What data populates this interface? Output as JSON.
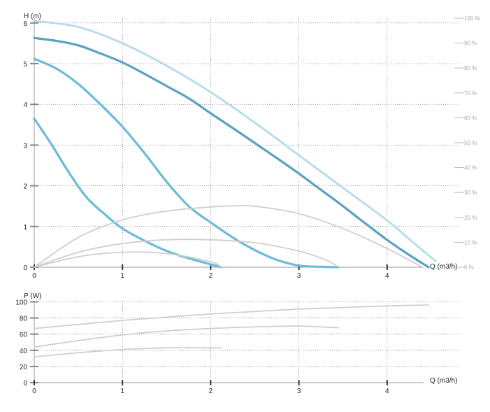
{
  "chart_data": [
    {
      "type": "line",
      "title": "",
      "xlabel": "Q (m3/h)",
      "ylabel": "H (m)",
      "xlim": [
        0,
        4.5
      ],
      "ylim": [
        0,
        6
      ],
      "x_ticks": [
        0,
        1,
        2,
        3,
        4
      ],
      "y_ticks": [
        0,
        1,
        2,
        3,
        4,
        5,
        6
      ],
      "grid": true,
      "y2_ticks": [
        "0 %",
        "10 %",
        "20 %",
        "30 %",
        "40 %",
        "50 %",
        "60 %",
        "70 %",
        "80 %",
        "90 %",
        "100 %"
      ],
      "y2lim": [
        0,
        100
      ],
      "colors": {
        "pump_curve_dark": "#5aa2c0",
        "pump_curve": "#6cbbd9",
        "efficiency_curve": "#cfcfcf",
        "max_envelope": "#b6dcea",
        "grid": "#555555",
        "axis": "#999999"
      },
      "series": [
        {
          "role": "pump-curve-high",
          "x": [
            0,
            0.25,
            0.5,
            0.75,
            1.0,
            1.25,
            1.5,
            1.75,
            2.0,
            2.25,
            2.5,
            2.75,
            3.0,
            3.25,
            3.5,
            3.75,
            4.0,
            4.25,
            4.47
          ],
          "y": [
            5.63,
            5.56,
            5.45,
            5.25,
            5.03,
            4.75,
            4.45,
            4.15,
            3.78,
            3.42,
            3.05,
            2.68,
            2.3,
            1.9,
            1.5,
            1.08,
            0.67,
            0.3,
            0
          ]
        },
        {
          "role": "pump-curve-mid",
          "x": [
            0,
            0.25,
            0.5,
            0.75,
            1.0,
            1.25,
            1.5,
            1.75,
            2.0,
            2.25,
            2.5,
            2.75,
            3.0,
            3.25,
            3.45
          ],
          "y": [
            5.12,
            4.88,
            4.5,
            4.0,
            3.45,
            2.8,
            2.1,
            1.5,
            1.1,
            0.73,
            0.42,
            0.18,
            0.04,
            0.01,
            0
          ]
        },
        {
          "role": "pump-curve-low",
          "x": [
            0,
            0.2,
            0.4,
            0.6,
            0.8,
            1.0,
            1.25,
            1.5,
            1.75,
            2.0,
            2.12
          ],
          "y": [
            3.65,
            3.0,
            2.3,
            1.7,
            1.3,
            0.95,
            0.65,
            0.4,
            0.22,
            0.07,
            0
          ]
        },
        {
          "role": "max-envelope",
          "x": [
            0,
            0.5,
            1.0,
            1.5,
            2.0,
            2.5,
            3.0,
            3.5,
            4.0,
            4.3,
            4.55
          ],
          "y": [
            6.05,
            5.9,
            5.5,
            4.95,
            4.3,
            3.55,
            2.75,
            1.95,
            1.15,
            0.6,
            0.15
          ]
        },
        {
          "role": "efficiency-high",
          "x": [
            0,
            0.5,
            1.0,
            1.5,
            2.0,
            2.25,
            2.5,
            3.0,
            3.5,
            4.0,
            4.4
          ],
          "y2": [
            0,
            12,
            19,
            22.5,
            24.2,
            24.6,
            24.5,
            21.5,
            15.5,
            7.5,
            0
          ]
        },
        {
          "role": "efficiency-mid",
          "x": [
            0,
            0.5,
            1.0,
            1.5,
            2.0,
            2.5,
            3.0,
            3.3,
            3.45
          ],
          "y2": [
            0,
            6,
            9.5,
            11,
            11,
            9.8,
            6.5,
            3,
            0
          ]
        },
        {
          "role": "efficiency-low",
          "x": [
            0,
            0.5,
            1.0,
            1.5,
            2.0,
            2.12
          ],
          "y2": [
            0,
            4.2,
            6,
            5.5,
            2.2,
            0
          ]
        }
      ]
    },
    {
      "type": "line",
      "title": "",
      "xlabel": "Q (m3/h)",
      "ylabel": "P (W)",
      "xlim": [
        0,
        4.5
      ],
      "ylim": [
        0,
        100
      ],
      "x_ticks": [
        0,
        1,
        2,
        3,
        4
      ],
      "y_ticks": [
        0,
        20,
        40,
        60,
        80,
        100
      ],
      "grid": true,
      "series": [
        {
          "role": "power-high",
          "x": [
            0,
            0.5,
            1.0,
            1.5,
            2.0,
            2.5,
            3.0,
            3.5,
            4.0,
            4.47
          ],
          "y": [
            67,
            72,
            77,
            81,
            85,
            88,
            91,
            93,
            95,
            96
          ]
        },
        {
          "role": "power-mid",
          "x": [
            0,
            0.5,
            1.0,
            1.5,
            2.0,
            2.5,
            3.0,
            3.45
          ],
          "y": [
            44,
            52,
            59,
            64,
            67,
            69,
            70,
            68
          ]
        },
        {
          "role": "power-low",
          "x": [
            0,
            0.5,
            1.0,
            1.5,
            2.0,
            2.12
          ],
          "y": [
            32,
            37,
            41,
            43,
            43,
            43
          ]
        }
      ]
    }
  ]
}
